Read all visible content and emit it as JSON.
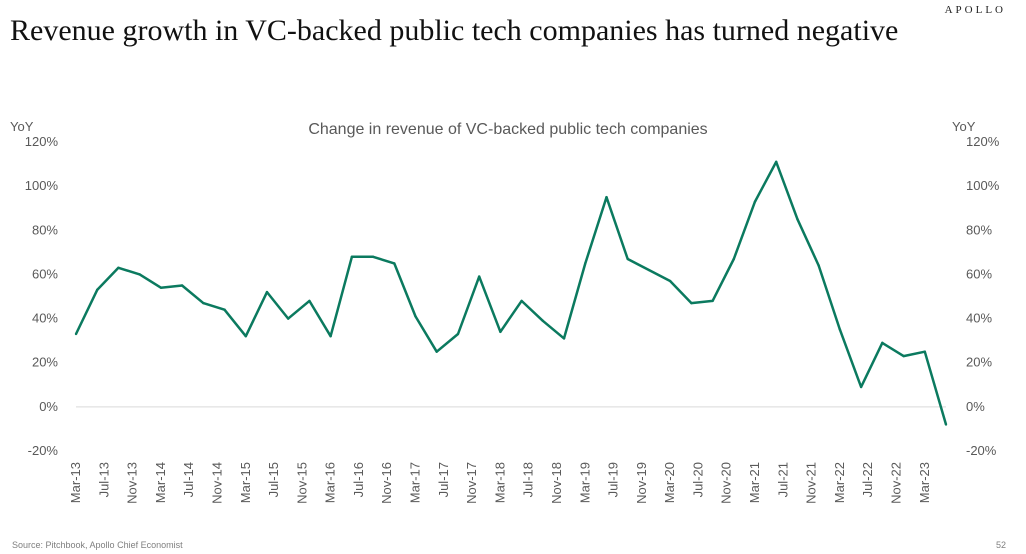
{
  "header": {
    "brand": "APOLLO",
    "title": "Revenue growth in VC-backed public tech companies has turned negative"
  },
  "footer": {
    "source": "Source: Pitchbook, Apollo Chief Economist",
    "page_number": "52"
  },
  "chart_data": {
    "type": "line",
    "title": "Change in revenue of VC-backed public tech companies",
    "ylabel_left": "YoY",
    "ylabel_right": "YoY",
    "ylim": [
      -20,
      120
    ],
    "yticks": [
      "-20%",
      "0%",
      "20%",
      "40%",
      "60%",
      "80%",
      "100%",
      "120%"
    ],
    "ytick_values": [
      -20,
      0,
      20,
      40,
      60,
      80,
      100,
      120
    ],
    "xtick_labels": [
      "Mar-13",
      "Jul-13",
      "Nov-13",
      "Mar-14",
      "Jul-14",
      "Nov-14",
      "Mar-15",
      "Jul-15",
      "Nov-15",
      "Mar-16",
      "Jul-16",
      "Nov-16",
      "Mar-17",
      "Jul-17",
      "Nov-17",
      "Mar-18",
      "Jul-18",
      "Nov-18",
      "Mar-19",
      "Jul-19",
      "Nov-19",
      "Mar-20",
      "Jul-20",
      "Nov-20",
      "Mar-21",
      "Jul-21",
      "Nov-21",
      "Mar-22",
      "Jul-22",
      "Nov-22",
      "Mar-23"
    ],
    "series": [
      {
        "color": "#0b7a5f",
        "x": [
          "Mar-13",
          "Jun-13",
          "Sep-13",
          "Dec-13",
          "Mar-14",
          "Jun-14",
          "Sep-14",
          "Dec-14",
          "Mar-15",
          "Jun-15",
          "Sep-15",
          "Dec-15",
          "Mar-16",
          "Jun-16",
          "Sep-16",
          "Dec-16",
          "Mar-17",
          "Jun-17",
          "Sep-17",
          "Dec-17",
          "Mar-18",
          "Jun-18",
          "Sep-18",
          "Dec-18",
          "Mar-19",
          "Jun-19",
          "Sep-19",
          "Dec-19",
          "Mar-20",
          "Jun-20",
          "Sep-20",
          "Dec-20",
          "Mar-21",
          "Jun-21",
          "Sep-21",
          "Dec-21",
          "Mar-22",
          "Jun-22",
          "Sep-22",
          "Dec-22",
          "Mar-23",
          "Jun-23"
        ],
        "values": [
          33,
          53,
          63,
          60,
          54,
          55,
          47,
          44,
          32,
          52,
          40,
          48,
          32,
          68,
          68,
          65,
          41,
          25,
          33,
          59,
          34,
          48,
          39,
          31,
          65,
          95,
          67,
          62,
          57,
          47,
          48,
          67,
          93,
          111,
          85,
          64,
          35,
          9,
          29,
          23,
          25,
          -8
        ]
      }
    ]
  }
}
